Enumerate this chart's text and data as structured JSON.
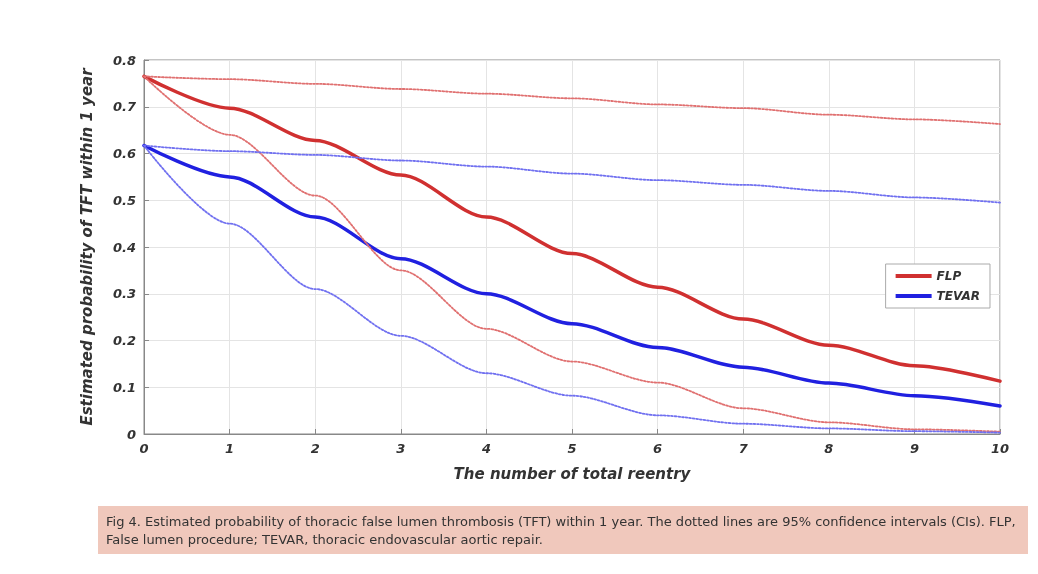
{
  "chart_data": {
    "type": "line",
    "xlabel": "The number of total reentry",
    "ylabel": "Estimated probability of TFT within 1 year",
    "x": [
      0,
      1,
      2,
      3,
      4,
      5,
      6,
      7,
      8,
      9,
      10
    ],
    "series": [
      {
        "name": "FLP",
        "color": "#d03030",
        "values": [
          0.765,
          0.697,
          0.628,
          0.554,
          0.464,
          0.386,
          0.314,
          0.246,
          0.19,
          0.146,
          0.113
        ]
      },
      {
        "name": "TEVAR",
        "color": "#2020e0",
        "values": [
          0.617,
          0.55,
          0.464,
          0.375,
          0.3,
          0.236,
          0.185,
          0.143,
          0.109,
          0.082,
          0.06
        ]
      },
      {
        "color": "#e07070",
        "line_style": "dotted",
        "values": [
          0.765,
          0.759,
          0.749,
          0.738,
          0.728,
          0.718,
          0.705,
          0.697,
          0.683,
          0.673,
          0.663
        ]
      },
      {
        "color": "#e07070",
        "line_style": "dotted",
        "values": [
          0.765,
          0.64,
          0.51,
          0.35,
          0.225,
          0.155,
          0.11,
          0.055,
          0.025,
          0.01,
          0.005
        ]
      },
      {
        "color": "#7070f0",
        "line_style": "dotted",
        "values": [
          0.617,
          0.605,
          0.597,
          0.585,
          0.572,
          0.557,
          0.543,
          0.533,
          0.52,
          0.506,
          0.495
        ]
      },
      {
        "color": "#7070f0",
        "line_style": "dotted",
        "values": [
          0.617,
          0.45,
          0.31,
          0.21,
          0.13,
          0.082,
          0.04,
          0.022,
          0.012,
          0.006,
          0.003
        ]
      }
    ],
    "xlim": [
      0,
      10
    ],
    "xticks": [
      0,
      1,
      2,
      3,
      4,
      5,
      6,
      7,
      8,
      9,
      10
    ],
    "ylim": [
      0,
      0.8
    ],
    "yticks": [
      0,
      0.1,
      0.2,
      0.3,
      0.4,
      0.5,
      0.6,
      0.7,
      0.8
    ],
    "grid": true,
    "legend": "right",
    "line_style": "solid",
    "marker": "none",
    "annotations": [
      "Fig 4. Estimated probability of thoracic false lumen thrombosis (TFT) within 1 year. The dotted lines are 95% confidence intervals (CIs). FLP, False lumen procedure; TEVAR, thoracic endovascular aortic repair."
    ]
  }
}
